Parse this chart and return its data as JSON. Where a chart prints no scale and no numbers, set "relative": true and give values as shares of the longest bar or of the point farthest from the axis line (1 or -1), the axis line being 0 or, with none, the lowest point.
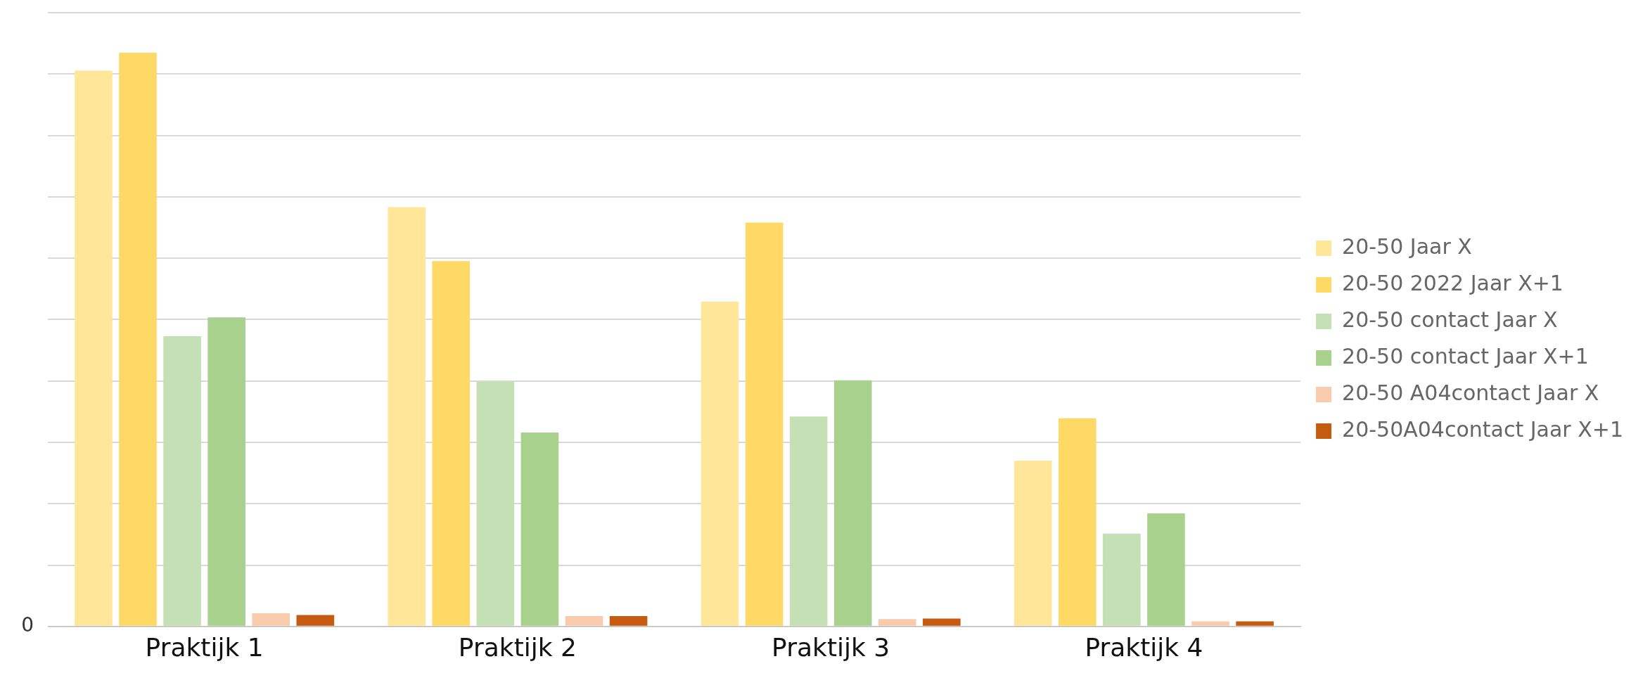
{
  "chart_data": {
    "type": "bar",
    "relative": true,
    "categories": [
      "Praktijk 1",
      "Praktijk 2",
      "Praktijk 3",
      "Praktijk 4"
    ],
    "series": [
      {
        "name": "20-50 Jaar X",
        "color": "#ffe699",
        "values": [
          0.969,
          0.731,
          0.566,
          0.289
        ]
      },
      {
        "name": "20-50 2022 Jaar X+1",
        "color": "#ffd966",
        "values": [
          1,
          0.637,
          0.704,
          0.363
        ]
      },
      {
        "name": "20-50 contact Jaar X",
        "color": "#c5e0b4",
        "values": [
          0.506,
          0.427,
          0.366,
          0.162
        ]
      },
      {
        "name": "20-50 contact Jaar X+1",
        "color": "#a9d18e",
        "values": [
          0.539,
          0.338,
          0.429,
          0.197
        ]
      },
      {
        "name": "20-50 A04contact Jaar X",
        "color": "#f8cbad",
        "values": [
          0.023,
          0.018,
          0.013,
          0.009
        ]
      },
      {
        "name": "20-50A04contact Jaar X+1",
        "color": "#c55a11",
        "values": [
          0.02,
          0.018,
          0.014,
          0.009
        ]
      }
    ],
    "annotations": [
      "0"
    ],
    "grid": "y",
    "legend": "right"
  }
}
